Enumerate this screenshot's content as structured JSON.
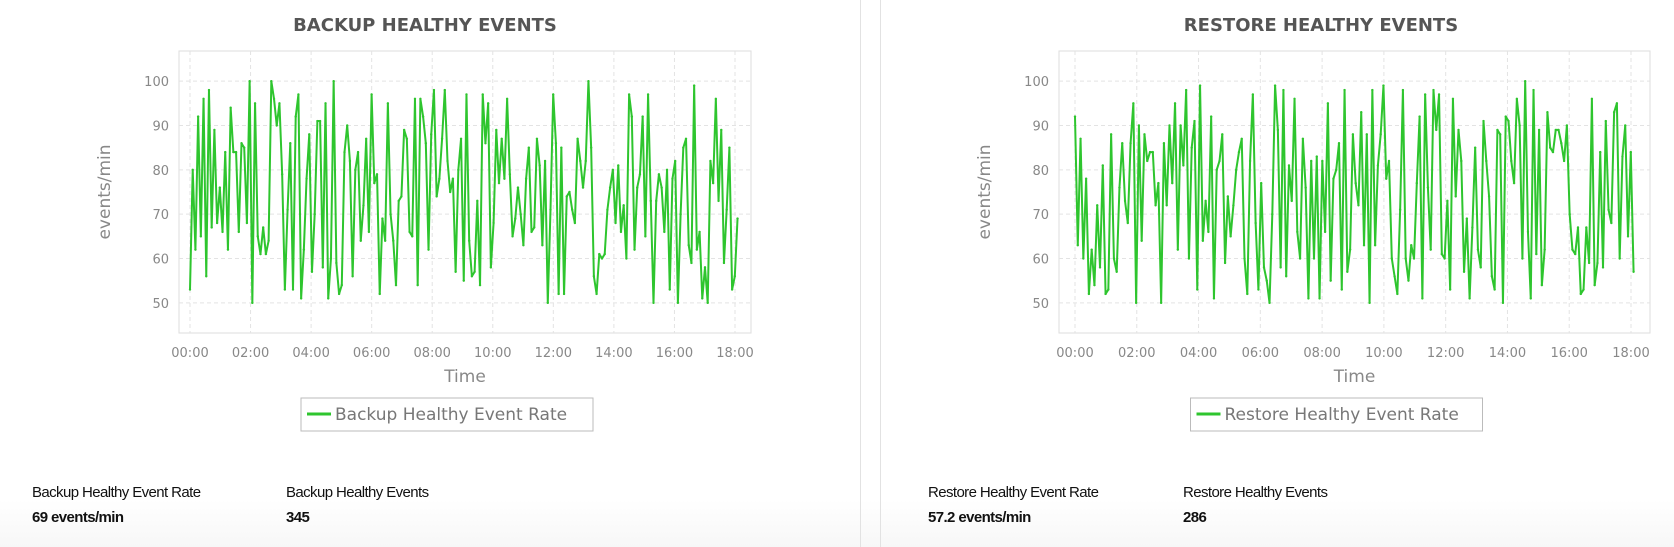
{
  "chart_data": [
    {
      "type": "line",
      "title": "BACKUP HEALTHY EVENTS",
      "xlabel": "Time",
      "ylabel": "events/min",
      "x_ticks": [
        "00:00",
        "02:00",
        "04:00",
        "06:00",
        "08:00",
        "10:00",
        "12:00",
        "14:00",
        "16:00",
        "18:00"
      ],
      "y_ticks": [
        50,
        60,
        70,
        80,
        90,
        100
      ],
      "x_range": [
        "00:00",
        "18:05"
      ],
      "grid": true,
      "legend": "bottom-center",
      "color": "#2ec52e",
      "series": [
        {
          "name": "Backup Healthy Event Rate",
          "values": [
            53,
            80,
            62,
            92,
            65,
            96,
            56,
            98,
            67,
            89,
            68,
            76,
            66,
            84,
            62,
            94,
            84,
            84,
            66,
            86,
            85,
            68,
            100,
            50,
            95,
            65,
            61,
            67,
            61,
            64,
            100,
            96,
            90,
            95,
            79,
            53,
            71,
            86,
            53,
            92,
            97,
            51,
            62,
            78,
            88,
            57,
            70,
            91,
            91,
            58,
            95,
            51,
            60,
            100,
            59,
            52,
            54,
            84,
            90,
            82,
            56,
            80,
            84,
            64,
            72,
            87,
            66,
            97,
            77,
            79,
            52,
            69,
            64,
            95,
            70,
            64,
            54,
            73,
            74,
            89,
            87,
            66,
            65,
            96,
            54,
            96,
            92,
            86,
            62,
            88,
            98,
            74,
            78,
            87,
            98,
            82,
            75,
            78,
            57,
            80,
            87,
            55,
            97,
            64,
            56,
            57,
            73,
            54,
            97,
            86,
            95,
            58,
            68,
            89,
            77,
            87,
            78,
            96,
            79,
            65,
            69,
            76,
            70,
            63,
            78,
            85,
            66,
            67,
            87,
            81,
            63,
            82,
            50,
            71,
            97,
            86,
            52,
            85,
            52,
            74,
            75,
            71,
            68,
            87,
            82,
            76,
            82,
            100,
            85,
            56,
            52,
            61,
            60,
            61,
            71,
            76,
            80,
            68,
            81,
            66,
            72,
            60,
            97,
            92,
            62,
            76,
            79,
            92,
            65,
            97,
            73,
            50,
            73,
            79,
            76,
            66,
            80,
            53,
            78,
            82,
            50,
            70,
            85,
            87,
            63,
            59,
            99,
            62,
            66,
            51,
            58,
            50,
            82,
            77,
            96,
            73,
            89,
            59,
            71,
            85,
            53,
            56,
            69
          ]
        }
      ]
    },
    {
      "type": "line",
      "title": "RESTORE HEALTHY EVENTS",
      "xlabel": "Time",
      "ylabel": "events/min",
      "x_ticks": [
        "00:00",
        "02:00",
        "04:00",
        "06:00",
        "08:00",
        "10:00",
        "12:00",
        "14:00",
        "16:00",
        "18:00"
      ],
      "y_ticks": [
        50,
        60,
        70,
        80,
        90,
        100
      ],
      "x_range": [
        "00:00",
        "18:05"
      ],
      "grid": true,
      "legend": "bottom-center",
      "color": "#2ec52e",
      "series": [
        {
          "name": "Restore Healthy Event Rate",
          "values": [
            92,
            63,
            87,
            60,
            78,
            52,
            62,
            54,
            72,
            58,
            81,
            52,
            53,
            88,
            60,
            57,
            76,
            86,
            73,
            68,
            86,
            95,
            50,
            90,
            64,
            88,
            82,
            84,
            84,
            72,
            77,
            50,
            86,
            72,
            90,
            77,
            95,
            62,
            90,
            81,
            98,
            60,
            85,
            91,
            53,
            99,
            64,
            73,
            66,
            92,
            51,
            80,
            82,
            88,
            59,
            74,
            65,
            72,
            80,
            84,
            87,
            60,
            52,
            82,
            97,
            68,
            53,
            77,
            58,
            55,
            50,
            70,
            99,
            89,
            58,
            98,
            56,
            81,
            73,
            96,
            66,
            60,
            87,
            76,
            51,
            82,
            60,
            83,
            51,
            82,
            66,
            95,
            55,
            78,
            80,
            86,
            53,
            98,
            57,
            62,
            88,
            77,
            72,
            93,
            63,
            88,
            50,
            98,
            63,
            81,
            88,
            99,
            78,
            82,
            60,
            56,
            52,
            71,
            98,
            60,
            55,
            63,
            60,
            77,
            92,
            51,
            97,
            76,
            62,
            98,
            89,
            97,
            61,
            60,
            73,
            53,
            96,
            74,
            89,
            82,
            57,
            69,
            51,
            67,
            85,
            62,
            58,
            91,
            82,
            74,
            56,
            53,
            89,
            88,
            50,
            92,
            91,
            82,
            77,
            96,
            90,
            60,
            100,
            66,
            51,
            98,
            61,
            89,
            54,
            62,
            93,
            85,
            84,
            89,
            89,
            86,
            82,
            90,
            70,
            62,
            61,
            67,
            52,
            53,
            67,
            59,
            96,
            54,
            59,
            84,
            58,
            91,
            71,
            68,
            93,
            95,
            60,
            83,
            90,
            65,
            84,
            57
          ]
        }
      ]
    }
  ],
  "stats": {
    "backup": {
      "rate_label": "Backup Healthy Event Rate",
      "rate_value": "69 events/min",
      "events_label": "Backup Healthy Events",
      "events_value": "345"
    },
    "restore": {
      "rate_label": "Restore Healthy Event Rate",
      "rate_value": "57.2 events/min",
      "events_label": "Restore Healthy Events",
      "events_value": "286"
    }
  }
}
